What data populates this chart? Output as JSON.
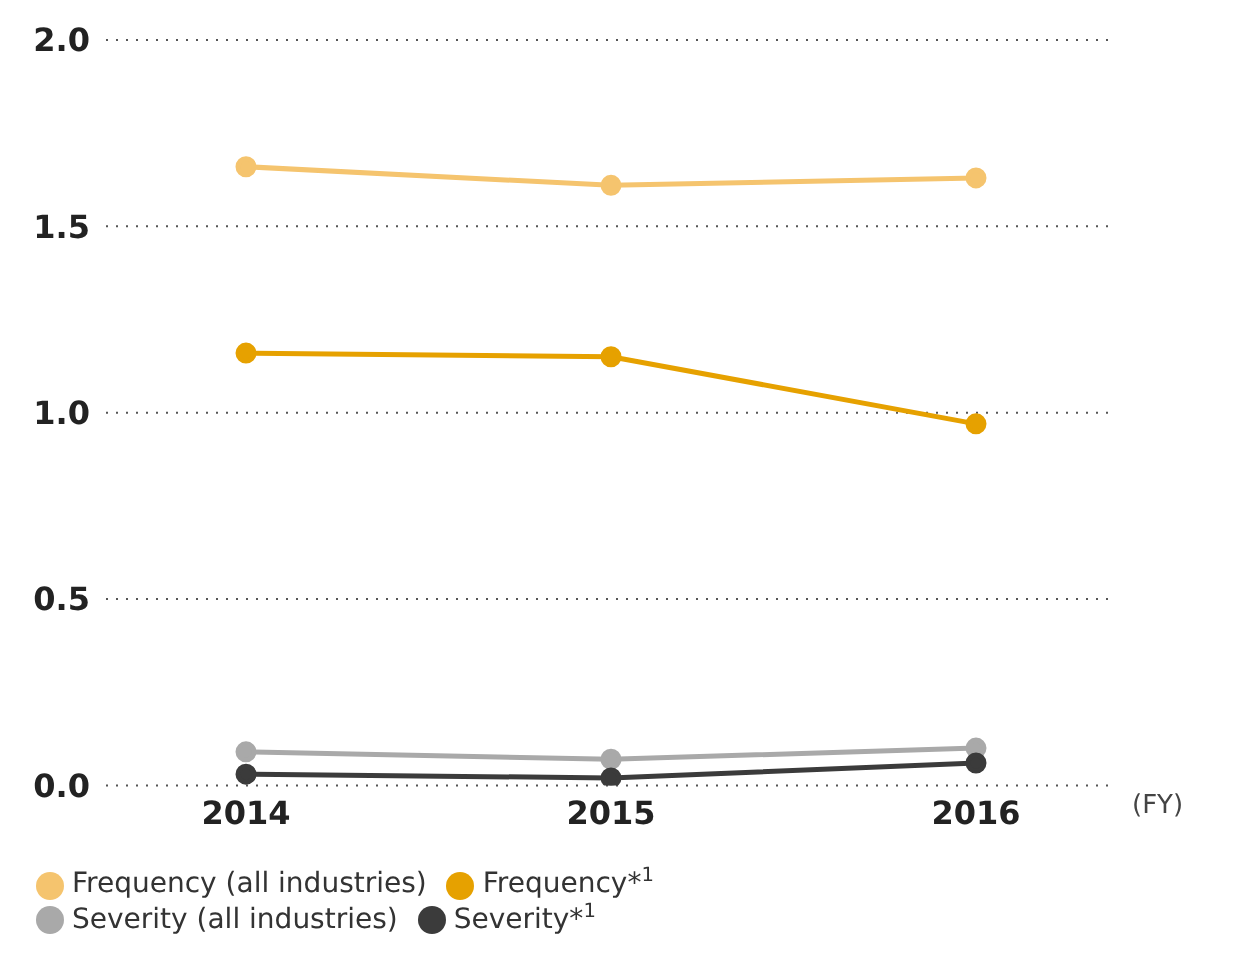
{
  "chart_data": {
    "type": "line",
    "xlabel": "(FY)",
    "categories": [
      "2014",
      "2015",
      "2016"
    ],
    "series": [
      {
        "name": "Frequency (all industries)",
        "color": "#f5c46e",
        "values": [
          1.66,
          1.61,
          1.63
        ]
      },
      {
        "name": "Frequency*$^{1}$",
        "color": "#e6a100",
        "values": [
          1.16,
          1.15,
          0.97
        ]
      },
      {
        "name": "Severity (all industries)",
        "color": "#a9a9a9",
        "values": [
          0.09,
          0.07,
          0.1
        ]
      },
      {
        "name": "Severity*$^{1}$",
        "color": "#3b3b3b",
        "values": [
          0.03,
          0.02,
          0.06
        ]
      }
    ],
    "ylim": [
      0,
      2
    ],
    "yticks": [
      {
        "value": 0,
        "label": "0.0"
      },
      0.5,
      {
        "value": 1,
        "label": "1.0"
      },
      1.5,
      {
        "value": 2,
        "label": "2.0"
      }
    ],
    "grid": "y",
    "legend": "bottom",
    "marker": "circle",
    "line_style": "solid"
  }
}
